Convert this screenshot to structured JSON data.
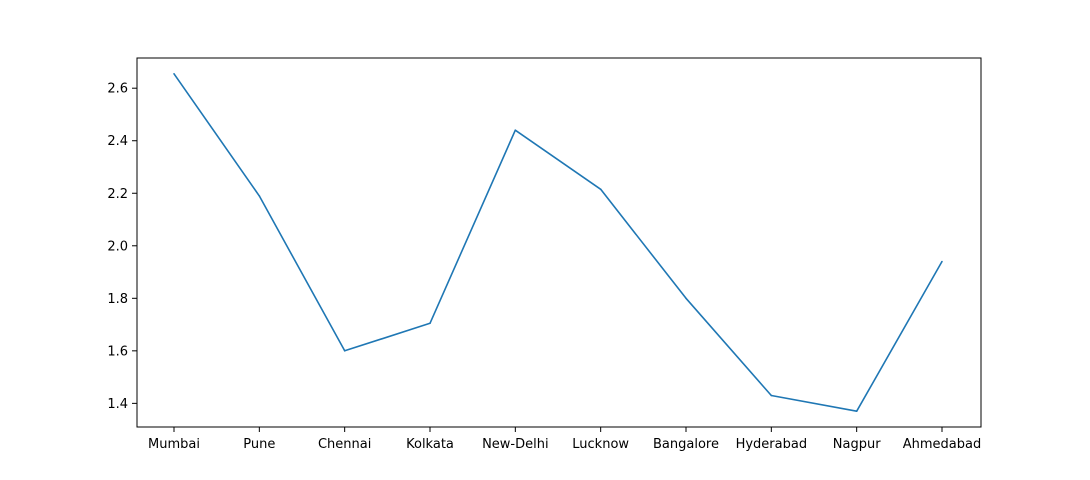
{
  "chart_data": {
    "type": "line",
    "categories": [
      "Mumbai",
      "Pune",
      "Chennai",
      "Kolkata",
      "New-Delhi",
      "Lucknow",
      "Bangalore",
      "Hyderabad",
      "Nagpur",
      "Ahmedabad"
    ],
    "series": [
      {
        "values": [
          2.655,
          2.19,
          1.6,
          1.705,
          2.44,
          2.215,
          1.8,
          1.43,
          1.37,
          1.94
        ],
        "color": "#1f77b4"
      }
    ],
    "y_ticks": [
      "1.4",
      "1.6",
      "1.8",
      "2.0",
      "2.2",
      "2.4",
      "2.6"
    ],
    "ylim": [
      1.31,
      2.715
    ],
    "title": "",
    "xlabel": "",
    "ylabel": "",
    "grid": false,
    "legend": "none"
  }
}
